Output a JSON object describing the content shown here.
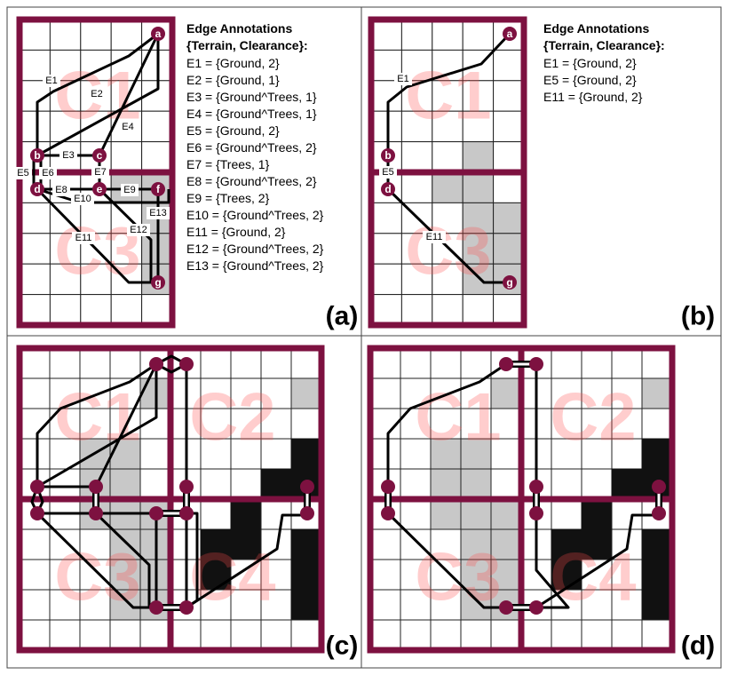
{
  "annotations": {
    "a": {
      "title_line1": "Edge Annotations",
      "title_line2": "{Terrain, Clearance}:",
      "lines": [
        "E1 = {Ground, 2}",
        "E2 = {Ground, 1}",
        "E3 = {Ground^Trees, 1}",
        "E4 = {Ground^Trees, 1}",
        "E5 = {Ground, 2}",
        "E6 = {Ground^Trees, 2}",
        "E7 = {Trees, 1}",
        "E8 = {Ground^Trees, 2}",
        "E9 = {Trees, 2}",
        "E10 = {Ground^Trees, 2}",
        "E11 = {Ground, 2}",
        "E12 = {Ground^Trees, 2}",
        "E13 = {Ground^Trees, 2}"
      ]
    },
    "b": {
      "title_line1": "Edge Annotations",
      "title_line2": "{Terrain, Clearance}:",
      "lines": [
        "E1 = {Ground, 2}",
        "E5 = {Ground, 2}",
        "E11 = {Ground, 2}"
      ]
    }
  },
  "panel_labels": [
    "(a)",
    "(b)",
    "(c)",
    "(d)"
  ],
  "cluster_labels": {
    "a": [
      "C1",
      "C3"
    ],
    "b": [
      "C1",
      "C3"
    ],
    "c": [
      "C1",
      "C2",
      "C3",
      "C4"
    ],
    "d": [
      "C1",
      "C2",
      "C3",
      "C4"
    ]
  },
  "node_labels": {
    "a": [
      "a",
      "b",
      "c",
      "d",
      "e",
      "f",
      "g"
    ],
    "b": [
      "a",
      "b",
      "d",
      "g"
    ]
  },
  "edge_labels": {
    "a": [
      "E1",
      "E2",
      "E3",
      "E4",
      "E5",
      "E6",
      "E7",
      "E8",
      "E9",
      "E10",
      "E11",
      "E12",
      "E13"
    ],
    "b": [
      "E1",
      "E5",
      "E11"
    ]
  },
  "colors": {
    "cluster_border": "#7d1140",
    "node_fill": "#7d1140",
    "obstacle_trees": "#c8c8c8",
    "obstacle_blocked": "#111111",
    "cluster_label": "#ff4d4d"
  }
}
